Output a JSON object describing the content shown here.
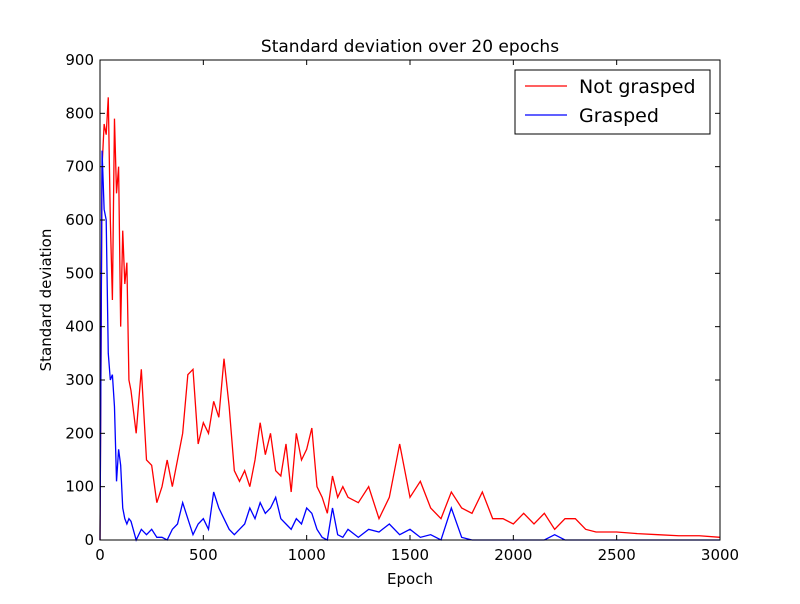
{
  "chart_data": {
    "type": "line",
    "title": "Standard deviation over 20 epochs",
    "xlabel": "Epoch",
    "ylabel": "Standard deviation",
    "x": [
      0,
      10,
      20,
      30,
      40,
      50,
      60,
      70,
      80,
      90,
      100,
      110,
      120,
      130,
      140,
      150,
      175,
      200,
      225,
      250,
      275,
      300,
      325,
      350,
      375,
      400,
      425,
      450,
      475,
      500,
      525,
      550,
      575,
      600,
      625,
      650,
      675,
      700,
      725,
      750,
      775,
      800,
      825,
      850,
      875,
      900,
      925,
      950,
      975,
      1000,
      1025,
      1050,
      1075,
      1100,
      1125,
      1150,
      1175,
      1200,
      1250,
      1300,
      1350,
      1400,
      1450,
      1500,
      1550,
      1600,
      1650,
      1700,
      1750,
      1800,
      1850,
      1900,
      1950,
      2000,
      2050,
      2100,
      2150,
      2200,
      2250,
      2300,
      2350,
      2400,
      2450,
      2500,
      2600,
      2700,
      2800,
      2900,
      3000
    ],
    "series": [
      {
        "name": "Not grasped",
        "color": "#ff0000",
        "values": [
          0,
          700,
          780,
          760,
          830,
          600,
          450,
          790,
          650,
          700,
          400,
          580,
          480,
          520,
          300,
          280,
          200,
          320,
          150,
          140,
          70,
          100,
          150,
          100,
          150,
          200,
          310,
          320,
          180,
          220,
          200,
          260,
          230,
          340,
          250,
          130,
          110,
          130,
          100,
          150,
          220,
          160,
          200,
          130,
          120,
          180,
          90,
          200,
          150,
          170,
          210,
          100,
          80,
          50,
          120,
          80,
          100,
          80,
          70,
          100,
          40,
          80,
          180,
          80,
          110,
          60,
          40,
          90,
          60,
          50,
          90,
          40,
          40,
          30,
          50,
          30,
          50,
          20,
          40,
          40,
          20,
          15,
          15,
          15,
          12,
          10,
          8,
          8,
          5
        ]
      },
      {
        "name": "Grasped",
        "color": "#0000ff",
        "values": [
          0,
          730,
          620,
          600,
          350,
          300,
          310,
          250,
          110,
          170,
          140,
          60,
          40,
          30,
          40,
          35,
          0,
          20,
          10,
          20,
          5,
          5,
          0,
          20,
          30,
          70,
          40,
          10,
          30,
          40,
          20,
          90,
          60,
          40,
          20,
          10,
          20,
          30,
          60,
          40,
          70,
          50,
          60,
          80,
          40,
          30,
          20,
          40,
          30,
          60,
          50,
          20,
          5,
          0,
          60,
          10,
          5,
          20,
          5,
          20,
          15,
          30,
          10,
          20,
          5,
          10,
          0,
          60,
          5,
          0,
          0,
          0,
          0,
          0,
          0,
          0,
          0,
          10,
          0,
          0,
          0,
          0,
          0,
          0,
          0,
          0,
          0,
          0,
          0
        ]
      }
    ],
    "xlim": [
      0,
      3000
    ],
    "xticks": [
      0,
      500,
      1000,
      1500,
      2000,
      2500,
      3000
    ],
    "ylim": [
      0,
      900
    ],
    "yticks": [
      0,
      100,
      200,
      300,
      400,
      500,
      600,
      700,
      800,
      900
    ],
    "legend": "upper right"
  }
}
